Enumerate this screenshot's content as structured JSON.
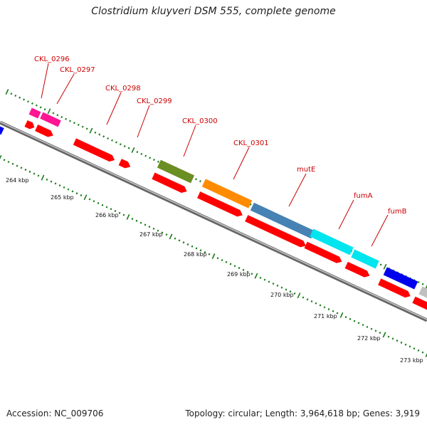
{
  "title": "Clostridium kluyveri DSM 555, complete genome",
  "footer": {
    "accession": "Accession: NC_009706",
    "topology": "Topology: circular; Length: 3,964,618 bp; Genes: 3,919"
  },
  "colors": {
    "backbone": "#8a8a8a",
    "cds": "#ff0000",
    "label": "#cc0000",
    "tick": "#1a7a1a"
  },
  "ruler_labels": [
    "264 kbp",
    "265 kbp",
    "266 kbp",
    "267 kbp",
    "268 kbp",
    "269 kbp",
    "270 kbp",
    "271 kbp",
    "272 kbp",
    "273 kbp"
  ],
  "feature_labels": [
    "CKL_0296",
    "CKL_0297",
    "CKL_0298",
    "CKL_0299",
    "CKL_0300",
    "CKL_0301",
    "mutE",
    "fumA",
    "fumB"
  ],
  "cog_colors": [
    "#ff1493",
    "#ff1493",
    "#6b8e23",
    "#ff8c00",
    "#4682b4",
    "#00e5ee",
    "#00e5ee",
    "#0000ee",
    "#c0c0c0",
    "#0000ee"
  ]
}
